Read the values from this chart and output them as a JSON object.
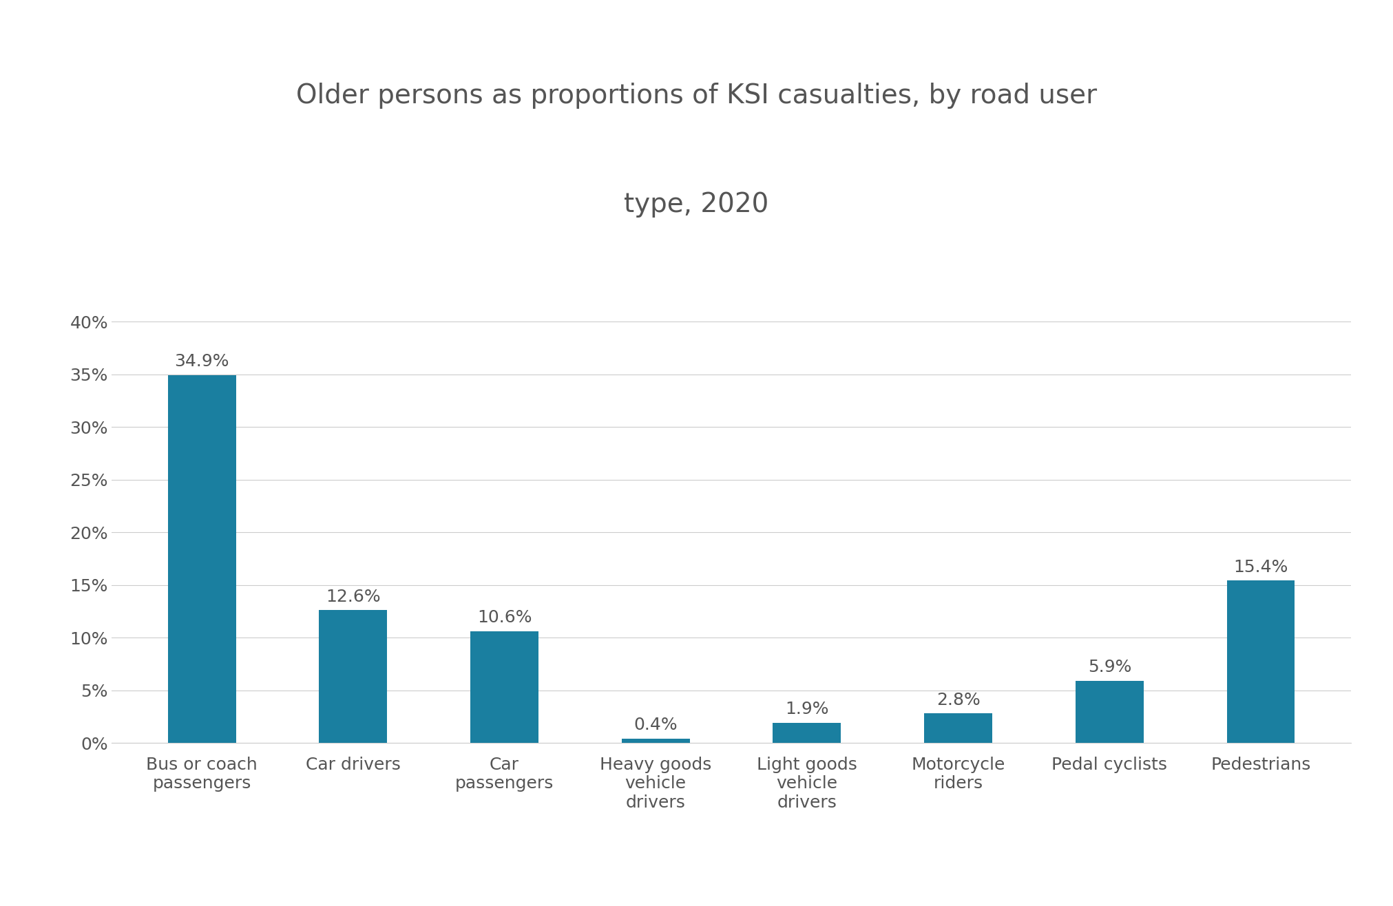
{
  "title_line1": "Older persons as proportions of KSI casualties, by road user",
  "title_line2": "type, 2020",
  "categories": [
    "Bus or coach\npassengers",
    "Car drivers",
    "Car\npassengers",
    "Heavy goods\nvehicle\ndrivers",
    "Light goods\nvehicle\ndrivers",
    "Motorcycle\nriders",
    "Pedal cyclists",
    "Pedestrians"
  ],
  "values": [
    34.9,
    12.6,
    10.6,
    0.4,
    1.9,
    2.8,
    5.9,
    15.4
  ],
  "labels": [
    "34.9%",
    "12.6%",
    "10.6%",
    "0.4%",
    "1.9%",
    "2.8%",
    "5.9%",
    "15.4%"
  ],
  "bar_color": "#1a7fa0",
  "background_color": "#ffffff",
  "title_fontsize": 28,
  "label_fontsize": 18,
  "tick_fontsize": 18,
  "ytick_labels": [
    "0%",
    "5%",
    "10%",
    "15%",
    "20%",
    "25%",
    "30%",
    "35%",
    "40%"
  ],
  "ytick_values": [
    0,
    5,
    10,
    15,
    20,
    25,
    30,
    35,
    40
  ],
  "ylim": [
    0,
    43
  ],
  "grid_color": "#cccccc",
  "spine_color": "#cccccc",
  "text_color": "#555555"
}
